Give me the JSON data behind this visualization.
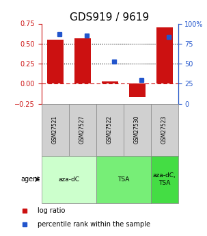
{
  "title": "GDS919 / 9619",
  "samples": [
    "GSM27521",
    "GSM27527",
    "GSM27522",
    "GSM27530",
    "GSM27523"
  ],
  "log_ratios": [
    0.55,
    0.57,
    0.03,
    -0.17,
    0.7
  ],
  "percentile_ranks": [
    87,
    85,
    53,
    30,
    83
  ],
  "ylim_left": [
    -0.25,
    0.75
  ],
  "ylim_right": [
    0,
    100
  ],
  "hlines_dotted": [
    0.25,
    0.5
  ],
  "hline_dashed": 0.0,
  "bar_color": "#cc1111",
  "blue_color": "#2255cc",
  "agent_groups": [
    {
      "label": "aza-dC",
      "start": 0,
      "end": 2,
      "color": "#ccffcc"
    },
    {
      "label": "TSA",
      "start": 2,
      "end": 4,
      "color": "#77ee77"
    },
    {
      "label": "aza-dC,\nTSA",
      "start": 4,
      "end": 5,
      "color": "#44dd44"
    }
  ],
  "legend_items": [
    {
      "label": "log ratio",
      "color": "#cc1111"
    },
    {
      "label": "percentile rank within the sample",
      "color": "#2255cc"
    }
  ],
  "title_fontsize": 11,
  "tick_fontsize": 7,
  "label_fontsize": 7
}
